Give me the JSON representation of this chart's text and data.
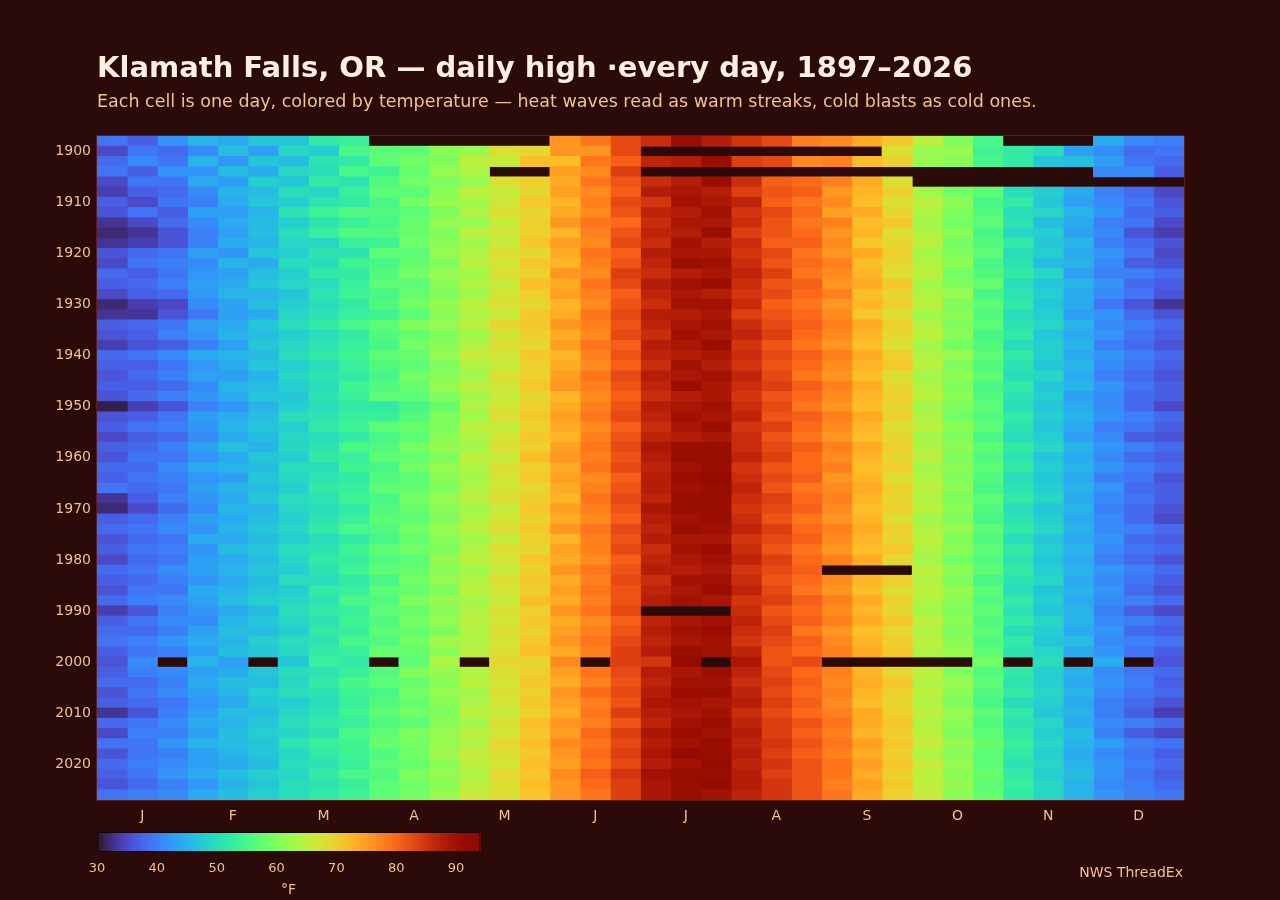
{
  "chart_data": {
    "type": "heatmap",
    "title": "Klamath Falls, OR — daily high ·every day, 1897–2026",
    "subtitle": "Each cell is one day, colored by temperature — heat waves read as warm streaks, cold blasts as cold ones.",
    "categories": [
      null,
      "J",
      null,
      null,
      "F",
      null,
      null,
      "M",
      null,
      null,
      "A",
      null,
      null,
      "M",
      null,
      null,
      "J",
      null,
      null,
      "J",
      null,
      null,
      "A",
      null,
      null,
      "S",
      null,
      null,
      "O",
      null,
      null,
      "N",
      null,
      null,
      "D",
      null
    ],
    "y_categories": [
      null,
      "1900",
      null,
      null,
      null,
      null,
      "1910",
      null,
      null,
      null,
      null,
      "1920",
      null,
      null,
      null,
      null,
      "1930",
      null,
      null,
      null,
      null,
      "1940",
      null,
      null,
      null,
      null,
      "1950",
      null,
      null,
      null,
      null,
      "1960",
      null,
      null,
      null,
      null,
      "1970",
      null,
      null,
      null,
      null,
      "1980",
      null,
      null,
      null,
      null,
      "1990",
      null,
      null,
      null,
      null,
      "2000",
      null,
      null,
      null,
      null,
      "2010",
      null,
      null,
      null,
      null,
      "2020",
      null,
      null,
      null
    ],
    "cells": [
      [
        39,
        37,
        42,
        45,
        44,
        47,
        47,
        52,
        53,
        null,
        null,
        null,
        null,
        null,
        null,
        76,
        79,
        83,
        86,
        91,
        88,
        85,
        83,
        78,
        77,
        74,
        71,
        65,
        60,
        55,
        null,
        null,
        null,
        44,
        41,
        40
      ],
      [
        35,
        39,
        38,
        41,
        46,
        43,
        49,
        48,
        55,
        57,
        57,
        61,
        62,
        68,
        69,
        76,
        76,
        83,
        null,
        null,
        null,
        null,
        null,
        null,
        null,
        null,
        68,
        62,
        62,
        54,
        52,
        50,
        43,
        41,
        38,
        39
      ],
      [
        38,
        41,
        39,
        45,
        42,
        47,
        46,
        51,
        52,
        57,
        59,
        60,
        65,
        66,
        72,
        72,
        79,
        81,
        87,
        88,
        91,
        84,
        83,
        77,
        78,
        72,
        70,
        62,
        61,
        55,
        52,
        47,
        46,
        43,
        39,
        38
      ],
      [
        39,
        37,
        42,
        42,
        46,
        44,
        49,
        50,
        55,
        54,
        58,
        62,
        64,
        null,
        null,
        75,
        77,
        84,
        null,
        null,
        null,
        null,
        null,
        null,
        null,
        null,
        null,
        null,
        null,
        null,
        null,
        null,
        null,
        41,
        41,
        37
      ],
      [
        35,
        39,
        39,
        44,
        43,
        48,
        47,
        52,
        51,
        56,
        59,
        60,
        62,
        68,
        70,
        74,
        79,
        82,
        86,
        88,
        91,
        86,
        81,
        80,
        78,
        74,
        68,
        null,
        null,
        null,
        null,
        null,
        null,
        null,
        null,
        null
      ],
      [
        34,
        37,
        38,
        41,
        45,
        46,
        50,
        49,
        53,
        57,
        57,
        61,
        65,
        66,
        69,
        75,
        77,
        81,
        88,
        89,
        88,
        84,
        82,
        81,
        76,
        73,
        70,
        63,
        59,
        57,
        50,
        48,
        44,
        40,
        38,
        35
      ],
      [
        37,
        35,
        39,
        40,
        44,
        47,
        48,
        51,
        52,
        55,
        59,
        62,
        63,
        67,
        71,
        73,
        78,
        83,
        85,
        90,
        89,
        87,
        81,
        79,
        77,
        72,
        68,
        65,
        61,
        55,
        52,
        47,
        43,
        41,
        39,
        36
      ],
      [
        36,
        39,
        37,
        43,
        43,
        45,
        51,
        54,
        56,
        56,
        57,
        60,
        64,
        68,
        69,
        74,
        77,
        82,
        87,
        88,
        90,
        85,
        83,
        80,
        75,
        74,
        69,
        64,
        60,
        56,
        50,
        49,
        45,
        42,
        38,
        37
      ],
      [
        33,
        35,
        38,
        41,
        44,
        46,
        48,
        51,
        53,
        55,
        58,
        62,
        62,
        66,
        70,
        76,
        79,
        80,
        86,
        89,
        89,
        86,
        82,
        79,
        78,
        72,
        71,
        63,
        59,
        57,
        51,
        46,
        44,
        40,
        39,
        35
      ],
      [
        32,
        33,
        36,
        40,
        43,
        46,
        50,
        53,
        56,
        56,
        58,
        60,
        65,
        67,
        70,
        73,
        78,
        82,
        87,
        88,
        91,
        84,
        82,
        80,
        76,
        73,
        68,
        64,
        61,
        55,
        49,
        48,
        43,
        41,
        36,
        34
      ],
      [
        33,
        34,
        36,
        40,
        44,
        45,
        49,
        49,
        53,
        54,
        59,
        61,
        63,
        66,
        71,
        75,
        77,
        83,
        86,
        90,
        88,
        86,
        81,
        81,
        77,
        71,
        69,
        65,
        59,
        56,
        52,
        47,
        45,
        40,
        38,
        36
      ],
      [
        36,
        38,
        39,
        43,
        42,
        47,
        48,
        51,
        51,
        57,
        57,
        62,
        64,
        68,
        69,
        74,
        79,
        81,
        88,
        89,
        89,
        85,
        83,
        79,
        76,
        74,
        70,
        63,
        60,
        57,
        50,
        48,
        44,
        42,
        39,
        35
      ],
      [
        35,
        39,
        40,
        41,
        45,
        44,
        50,
        50,
        54,
        55,
        58,
        60,
        65,
        67,
        71,
        73,
        78,
        82,
        87,
        91,
        90,
        86,
        82,
        80,
        78,
        72,
        69,
        64,
        61,
        55,
        51,
        46,
        45,
        41,
        37,
        36
      ],
      [
        38,
        37,
        39,
        42,
        43,
        46,
        48,
        52,
        52,
        56,
        59,
        62,
        63,
        68,
        70,
        76,
        77,
        84,
        86,
        88,
        89,
        87,
        84,
        79,
        77,
        73,
        68,
        65,
        59,
        56,
        52,
        49,
        43,
        40,
        40,
        38
      ],
      [
        37,
        38,
        40,
        43,
        44,
        47,
        49,
        50,
        53,
        57,
        57,
        61,
        64,
        66,
        72,
        74,
        79,
        83,
        88,
        90,
        91,
        86,
        82,
        81,
        76,
        74,
        71,
        63,
        60,
        58,
        50,
        47,
        45,
        42,
        38,
        37
      ],
      [
        35,
        37,
        38,
        42,
        45,
        45,
        47,
        51,
        54,
        55,
        58,
        60,
        63,
        67,
        70,
        75,
        78,
        81,
        87,
        89,
        88,
        85,
        83,
        80,
        78,
        72,
        69,
        64,
        62,
        55,
        51,
        48,
        44,
        41,
        39,
        36
      ],
      [
        32,
        34,
        35,
        41,
        43,
        46,
        48,
        50,
        52,
        56,
        59,
        62,
        65,
        68,
        69,
        73,
        77,
        82,
        86,
        90,
        90,
        86,
        81,
        79,
        76,
        73,
        70,
        65,
        60,
        57,
        52,
        47,
        44,
        39,
        36,
        33
      ],
      [
        33,
        33,
        36,
        39,
        43,
        44,
        49,
        51,
        53,
        54,
        57,
        61,
        64,
        66,
        71,
        74,
        79,
        83,
        88,
        88,
        89,
        84,
        82,
        80,
        77,
        71,
        68,
        63,
        61,
        56,
        50,
        48,
        43,
        42,
        38,
        36
      ],
      [
        37,
        38,
        39,
        43,
        44,
        47,
        50,
        52,
        55,
        57,
        60,
        62,
        65,
        69,
        71,
        76,
        78,
        82,
        87,
        89,
        90,
        86,
        83,
        81,
        78,
        74,
        70,
        64,
        60,
        57,
        51,
        49,
        45,
        41,
        40,
        38
      ],
      [
        36,
        37,
        40,
        42,
        45,
        46,
        48,
        50,
        52,
        56,
        58,
        60,
        63,
        67,
        70,
        74,
        77,
        83,
        86,
        90,
        89,
        87,
        84,
        80,
        77,
        73,
        69,
        65,
        61,
        55,
        52,
        47,
        44,
        42,
        39,
        37
      ],
      [
        34,
        36,
        37,
        40,
        43,
        47,
        49,
        51,
        53,
        55,
        59,
        61,
        64,
        68,
        69,
        75,
        79,
        81,
        88,
        89,
        91,
        85,
        82,
        79,
        76,
        72,
        68,
        63,
        59,
        56,
        50,
        48,
        45,
        40,
        38,
        36
      ],
      [
        38,
        39,
        41,
        44,
        45,
        46,
        50,
        52,
        54,
        57,
        58,
        62,
        66,
        67,
        71,
        73,
        78,
        82,
        87,
        88,
        89,
        86,
        83,
        81,
        78,
        74,
        70,
        64,
        62,
        57,
        52,
        48,
        44,
        42,
        40,
        38
      ],
      [
        37,
        37,
        39,
        42,
        44,
        47,
        48,
        50,
        53,
        56,
        57,
        60,
        64,
        66,
        70,
        74,
        77,
        81,
        86,
        90,
        88,
        85,
        82,
        80,
        77,
        73,
        71,
        65,
        60,
        56,
        51,
        47,
        45,
        41,
        39,
        37
      ],
      [
        36,
        38,
        40,
        43,
        43,
        45,
        49,
        51,
        52,
        55,
        59,
        61,
        63,
        68,
        70,
        75,
        79,
        83,
        88,
        89,
        90,
        87,
        83,
        79,
        76,
        72,
        68,
        63,
        61,
        57,
        50,
        49,
        44,
        40,
        38,
        36
      ],
      [
        37,
        37,
        38,
        41,
        45,
        46,
        48,
        50,
        54,
        56,
        58,
        62,
        65,
        67,
        71,
        76,
        78,
        82,
        87,
        91,
        89,
        86,
        84,
        81,
        78,
        74,
        69,
        64,
        60,
        55,
        52,
        47,
        45,
        42,
        39,
        37
      ],
      [
        36,
        38,
        40,
        42,
        44,
        47,
        47,
        51,
        53,
        57,
        57,
        60,
        63,
        66,
        69,
        73,
        77,
        81,
        86,
        88,
        89,
        85,
        82,
        80,
        77,
        73,
        70,
        65,
        61,
        56,
        51,
        48,
        43,
        41,
        38,
        37
      ],
      [
        31,
        34,
        36,
        40,
        42,
        45,
        48,
        50,
        52,
        52,
        55,
        58,
        64,
        67,
        70,
        74,
        78,
        82,
        88,
        89,
        90,
        86,
        83,
        79,
        76,
        72,
        69,
        63,
        60,
        57,
        50,
        47,
        44,
        41,
        38,
        35
      ],
      [
        36,
        37,
        39,
        43,
        44,
        46,
        50,
        51,
        53,
        53,
        56,
        60,
        63,
        68,
        71,
        75,
        79,
        83,
        87,
        90,
        89,
        87,
        82,
        81,
        78,
        74,
        70,
        64,
        59,
        56,
        52,
        48,
        45,
        42,
        40,
        38
      ],
      [
        37,
        39,
        40,
        42,
        45,
        47,
        48,
        52,
        54,
        57,
        58,
        60,
        65,
        66,
        70,
        74,
        77,
        81,
        86,
        89,
        91,
        85,
        84,
        80,
        77,
        73,
        68,
        65,
        61,
        57,
        51,
        47,
        44,
        40,
        39,
        37
      ],
      [
        35,
        37,
        38,
        41,
        44,
        46,
        49,
        50,
        52,
        55,
        57,
        61,
        64,
        67,
        71,
        73,
        78,
        82,
        87,
        88,
        89,
        86,
        82,
        79,
        76,
        72,
        69,
        63,
        60,
        55,
        50,
        48,
        43,
        41,
        37,
        36
      ],
      [
        37,
        38,
        40,
        43,
        46,
        45,
        49,
        51,
        55,
        56,
        59,
        62,
        63,
        68,
        70,
        75,
        79,
        83,
        89,
        91,
        91,
        86,
        83,
        81,
        78,
        74,
        70,
        64,
        61,
        57,
        52,
        49,
        45,
        42,
        40,
        38
      ],
      [
        36,
        39,
        39,
        42,
        44,
        47,
        48,
        52,
        53,
        57,
        58,
        60,
        65,
        66,
        72,
        76,
        78,
        82,
        88,
        91,
        91,
        87,
        84,
        80,
        77,
        73,
        69,
        65,
        60,
        56,
        51,
        47,
        44,
        41,
        38,
        37
      ],
      [
        38,
        38,
        41,
        44,
        45,
        46,
        50,
        50,
        54,
        55,
        59,
        62,
        64,
        68,
        70,
        74,
        79,
        83,
        87,
        90,
        91,
        85,
        82,
        80,
        78,
        72,
        70,
        63,
        61,
        57,
        52,
        48,
        45,
        42,
        40,
        38
      ],
      [
        37,
        39,
        40,
        42,
        43,
        47,
        49,
        51,
        52,
        56,
        57,
        61,
        63,
        67,
        71,
        75,
        77,
        81,
        88,
        91,
        92,
        86,
        83,
        81,
        76,
        73,
        68,
        64,
        60,
        56,
        50,
        47,
        44,
        40,
        39,
        36
      ],
      [
        39,
        38,
        39,
        43,
        45,
        46,
        48,
        52,
        53,
        57,
        58,
        60,
        64,
        67,
        69,
        74,
        78,
        82,
        88,
        90,
        91,
        87,
        82,
        79,
        77,
        74,
        70,
        65,
        61,
        55,
        51,
        48,
        45,
        42,
        38,
        37
      ],
      [
        33,
        37,
        40,
        42,
        44,
        47,
        50,
        51,
        54,
        55,
        59,
        62,
        65,
        68,
        70,
        73,
        79,
        83,
        87,
        91,
        91,
        86,
        84,
        80,
        78,
        73,
        69,
        64,
        60,
        57,
        52,
        49,
        44,
        41,
        39,
        37
      ],
      [
        32,
        35,
        38,
        41,
        45,
        45,
        49,
        50,
        52,
        56,
        58,
        61,
        63,
        66,
        71,
        75,
        78,
        82,
        89,
        91,
        91,
        85,
        83,
        81,
        77,
        72,
        70,
        65,
        61,
        56,
        50,
        47,
        45,
        40,
        38,
        36
      ],
      [
        37,
        38,
        40,
        43,
        44,
        46,
        48,
        51,
        53,
        57,
        57,
        60,
        64,
        67,
        70,
        74,
        77,
        81,
        88,
        90,
        91,
        86,
        82,
        79,
        76,
        73,
        68,
        63,
        60,
        55,
        51,
        48,
        44,
        41,
        38,
        35
      ],
      [
        38,
        39,
        41,
        42,
        45,
        47,
        49,
        52,
        55,
        56,
        59,
        62,
        65,
        68,
        71,
        76,
        79,
        83,
        87,
        91,
        90,
        87,
        84,
        80,
        78,
        74,
        70,
        64,
        62,
        57,
        52,
        49,
        45,
        41,
        40,
        38
      ],
      [
        36,
        38,
        39,
        44,
        44,
        46,
        48,
        50,
        52,
        55,
        58,
        61,
        63,
        66,
        70,
        73,
        78,
        82,
        88,
        89,
        89,
        85,
        83,
        81,
        77,
        73,
        69,
        65,
        60,
        56,
        50,
        47,
        44,
        42,
        38,
        37
      ],
      [
        37,
        39,
        40,
        42,
        46,
        47,
        50,
        51,
        54,
        57,
        59,
        60,
        64,
        68,
        69,
        75,
        78,
        83,
        86,
        90,
        91,
        86,
        82,
        79,
        76,
        72,
        71,
        64,
        61,
        57,
        52,
        48,
        45,
        41,
        39,
        38
      ],
      [
        35,
        38,
        39,
        43,
        44,
        46,
        49,
        52,
        53,
        56,
        57,
        62,
        65,
        67,
        71,
        74,
        77,
        81,
        87,
        89,
        90,
        87,
        84,
        80,
        78,
        74,
        69,
        63,
        59,
        56,
        51,
        47,
        44,
        40,
        38,
        36
      ],
      [
        38,
        39,
        41,
        43,
        45,
        47,
        48,
        51,
        54,
        57,
        58,
        61,
        63,
        66,
        70,
        76,
        79,
        82,
        88,
        88,
        89,
        85,
        83,
        81,
        null,
        null,
        null,
        65,
        61,
        57,
        52,
        48,
        45,
        42,
        40,
        38
      ],
      [
        37,
        38,
        40,
        42,
        44,
        46,
        50,
        50,
        52,
        55,
        59,
        62,
        64,
        68,
        71,
        74,
        78,
        83,
        86,
        90,
        90,
        86,
        82,
        80,
        77,
        73,
        70,
        64,
        60,
        55,
        51,
        49,
        44,
        41,
        39,
        37
      ],
      [
        36,
        39,
        39,
        44,
        45,
        47,
        48,
        52,
        53,
        57,
        58,
        60,
        65,
        67,
        70,
        75,
        79,
        82,
        87,
        89,
        91,
        87,
        83,
        79,
        76,
        72,
        68,
        65,
        62,
        57,
        50,
        47,
        45,
        42,
        38,
        36
      ],
      [
        38,
        40,
        41,
        43,
        46,
        48,
        49,
        51,
        55,
        56,
        60,
        62,
        63,
        66,
        72,
        74,
        78,
        82,
        88,
        90,
        89,
        85,
        84,
        81,
        78,
        74,
        70,
        64,
        61,
        56,
        52,
        48,
        44,
        41,
        40,
        38
      ],
      [
        34,
        36,
        40,
        42,
        44,
        46,
        50,
        52,
        53,
        57,
        58,
        61,
        64,
        68,
        70,
        76,
        79,
        83,
        null,
        null,
        null,
        86,
        82,
        80,
        77,
        73,
        69,
        63,
        60,
        57,
        51,
        47,
        45,
        40,
        37,
        35
      ],
      [
        37,
        39,
        41,
        41,
        45,
        47,
        49,
        51,
        54,
        56,
        59,
        62,
        65,
        67,
        71,
        74,
        77,
        81,
        87,
        89,
        90,
        87,
        83,
        81,
        78,
        74,
        71,
        65,
        61,
        56,
        52,
        49,
        45,
        41,
        40,
        38
      ],
      [
        38,
        38,
        40,
        43,
        46,
        46,
        48,
        52,
        53,
        57,
        58,
        60,
        64,
        68,
        70,
        75,
        78,
        82,
        88,
        90,
        91,
        86,
        84,
        79,
        76,
        72,
        69,
        64,
        60,
        57,
        50,
        48,
        44,
        42,
        38,
        37
      ],
      [
        39,
        40,
        42,
        44,
        45,
        48,
        50,
        51,
        55,
        56,
        59,
        63,
        64,
        67,
        71,
        76,
        79,
        83,
        87,
        89,
        90,
        85,
        83,
        81,
        77,
        73,
        70,
        65,
        61,
        56,
        52,
        47,
        46,
        41,
        40,
        39
      ],
      [
        37,
        39,
        40,
        43,
        46,
        47,
        49,
        52,
        53,
        58,
        58,
        61,
        65,
        68,
        72,
        74,
        78,
        84,
        88,
        91,
        90,
        87,
        82,
        80,
        78,
        74,
        71,
        64,
        62,
        57,
        51,
        49,
        44,
        42,
        39,
        37
      ],
      [
        36,
        41,
        null,
        45,
        43,
        null,
        47,
        53,
        52,
        null,
        57,
        64,
        null,
        69,
        69,
        77,
        null,
        84,
        85,
        92,
        null,
        89,
        82,
        83,
        null,
        null,
        null,
        null,
        null,
        59,
        null,
        50,
        null,
        44,
        null,
        36
      ],
      [
        37,
        40,
        41,
        43,
        44,
        47,
        50,
        51,
        53,
        56,
        60,
        62,
        64,
        68,
        70,
        75,
        79,
        83,
        88,
        89,
        91,
        87,
        83,
        80,
        78,
        73,
        69,
        65,
        60,
        56,
        52,
        48,
        45,
        41,
        39,
        38
      ],
      [
        38,
        38,
        40,
        44,
        46,
        46,
        49,
        52,
        55,
        57,
        58,
        61,
        65,
        67,
        71,
        74,
        78,
        82,
        87,
        90,
        90,
        86,
        84,
        81,
        77,
        74,
        71,
        64,
        62,
        57,
        51,
        48,
        44,
        42,
        40,
        37
      ],
      [
        36,
        39,
        41,
        43,
        45,
        48,
        50,
        51,
        54,
        55,
        59,
        62,
        63,
        68,
        70,
        76,
        80,
        83,
        88,
        91,
        91,
        87,
        83,
        80,
        78,
        73,
        70,
        65,
        61,
        56,
        52,
        49,
        45,
        41,
        39,
        38
      ],
      [
        37,
        38,
        39,
        42,
        44,
        47,
        48,
        50,
        53,
        56,
        58,
        61,
        64,
        67,
        71,
        75,
        78,
        82,
        89,
        90,
        89,
        88,
        84,
        81,
        77,
        72,
        69,
        64,
        60,
        55,
        50,
        48,
        44,
        40,
        38,
        36
      ],
      [
        33,
        36,
        40,
        43,
        46,
        46,
        49,
        51,
        54,
        57,
        59,
        60,
        65,
        66,
        70,
        74,
        79,
        84,
        88,
        89,
        90,
        86,
        83,
        80,
        78,
        74,
        70,
        65,
        62,
        57,
        52,
        47,
        45,
        40,
        37,
        34
      ],
      [
        38,
        39,
        41,
        44,
        45,
        47,
        50,
        52,
        53,
        56,
        57,
        61,
        63,
        68,
        72,
        76,
        78,
        82,
        87,
        90,
        91,
        87,
        84,
        82,
        79,
        74,
        71,
        64,
        61,
        56,
        51,
        49,
        44,
        41,
        40,
        38
      ],
      [
        35,
        40,
        40,
        43,
        46,
        48,
        49,
        51,
        55,
        57,
        60,
        62,
        65,
        67,
        71,
        75,
        80,
        84,
        89,
        91,
        90,
        88,
        84,
        81,
        78,
        73,
        70,
        65,
        60,
        57,
        52,
        48,
        46,
        40,
        37,
        35
      ],
      [
        39,
        39,
        42,
        45,
        46,
        47,
        51,
        53,
        54,
        58,
        59,
        62,
        64,
        69,
        72,
        77,
        79,
        83,
        88,
        90,
        91,
        87,
        85,
        82,
        79,
        75,
        71,
        66,
        62,
        58,
        53,
        49,
        45,
        43,
        40,
        39
      ],
      [
        36,
        39,
        40,
        43,
        45,
        47,
        49,
        52,
        54,
        56,
        59,
        63,
        66,
        68,
        71,
        76,
        80,
        84,
        89,
        92,
        91,
        88,
        84,
        81,
        78,
        74,
        70,
        64,
        61,
        57,
        52,
        48,
        44,
        41,
        39,
        37
      ],
      [
        38,
        40,
        41,
        43,
        44,
        46,
        50,
        51,
        53,
        57,
        58,
        61,
        65,
        67,
        72,
        75,
        79,
        83,
        88,
        90,
        92,
        87,
        85,
        82,
        79,
        75,
        71,
        66,
        62,
        57,
        51,
        49,
        45,
        42,
        40,
        38
      ],
      [
        37,
        39,
        42,
        44,
        46,
        48,
        49,
        52,
        55,
        56,
        60,
        62,
        64,
        69,
        71,
        77,
        81,
        85,
        90,
        91,
        91,
        88,
        84,
        82,
        79,
        74,
        70,
        65,
        61,
        58,
        52,
        48,
        46,
        42,
        39,
        37
      ],
      [
        36,
        38,
        40,
        42,
        45,
        47,
        50,
        51,
        53,
        57,
        59,
        61,
        65,
        68,
        72,
        76,
        80,
        84,
        89,
        91,
        92,
        88,
        85,
        82,
        78,
        75,
        71,
        65,
        62,
        57,
        53,
        49,
        45,
        41,
        40,
        38
      ],
      [
        39,
        40,
        41,
        44,
        46,
        48,
        50,
        52,
        54,
        57,
        59,
        62,
        66,
        68,
        71,
        76,
        79,
        84,
        89,
        91,
        90,
        87,
        85,
        82,
        79,
        74,
        70,
        66,
        61,
        58,
        52,
        49,
        45,
        42,
        40,
        39
      ]
    ],
    "clim": [
      30,
      94
    ],
    "cticks": [
      30,
      40,
      50,
      60,
      70,
      80,
      90
    ],
    "clabel": "°F",
    "annotations": [
      "NWS ThreadEx"
    ]
  }
}
